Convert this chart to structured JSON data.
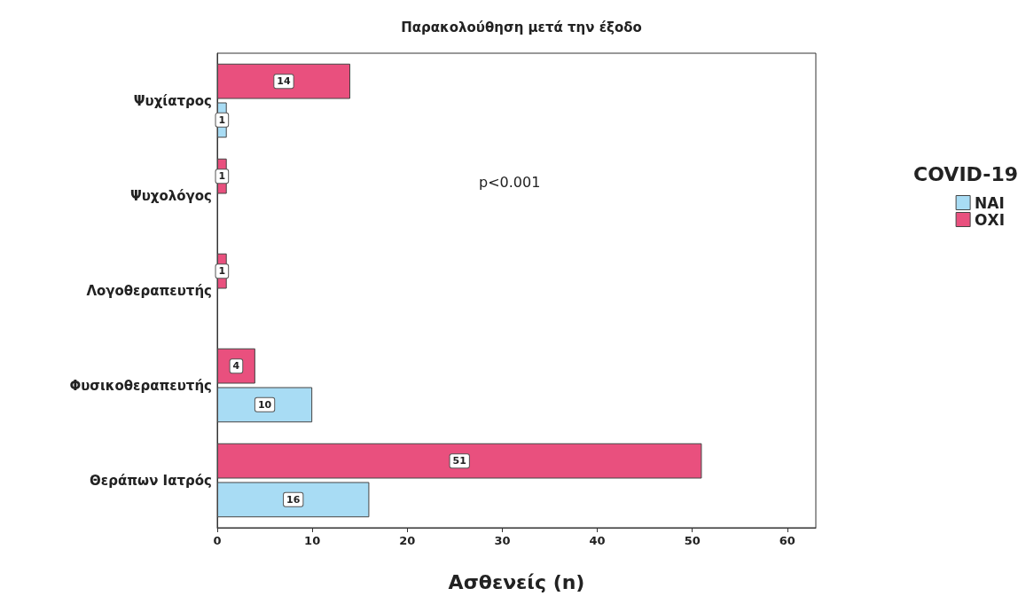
{
  "chart_data": {
    "type": "bar",
    "orientation": "horizontal",
    "title": "Παρακολούθηση μετά την έξοδο",
    "xlabel": "Ασθενείς (n)",
    "legend_title": "COVID-19",
    "legend": "right",
    "categories": [
      "Ψυχίατρος",
      "Ψυχολόγος",
      "Λογοθεραπευτής",
      "Φυσικοθεραπευτής",
      "Θεράπων Ιατρός"
    ],
    "series": [
      {
        "name": "ΝΑΙ",
        "color": "#a8dcf4",
        "values": [
          1,
          null,
          null,
          10,
          16
        ]
      },
      {
        "name": "ΟΧΙ",
        "color": "#e9507e",
        "values": [
          14,
          1,
          1,
          4,
          51
        ]
      }
    ],
    "xlim": [
      0,
      63
    ],
    "xticks": [
      0,
      10,
      20,
      30,
      40,
      50,
      60
    ],
    "grid": false,
    "data_labels": true,
    "annotations": [
      "p<0.001"
    ]
  }
}
